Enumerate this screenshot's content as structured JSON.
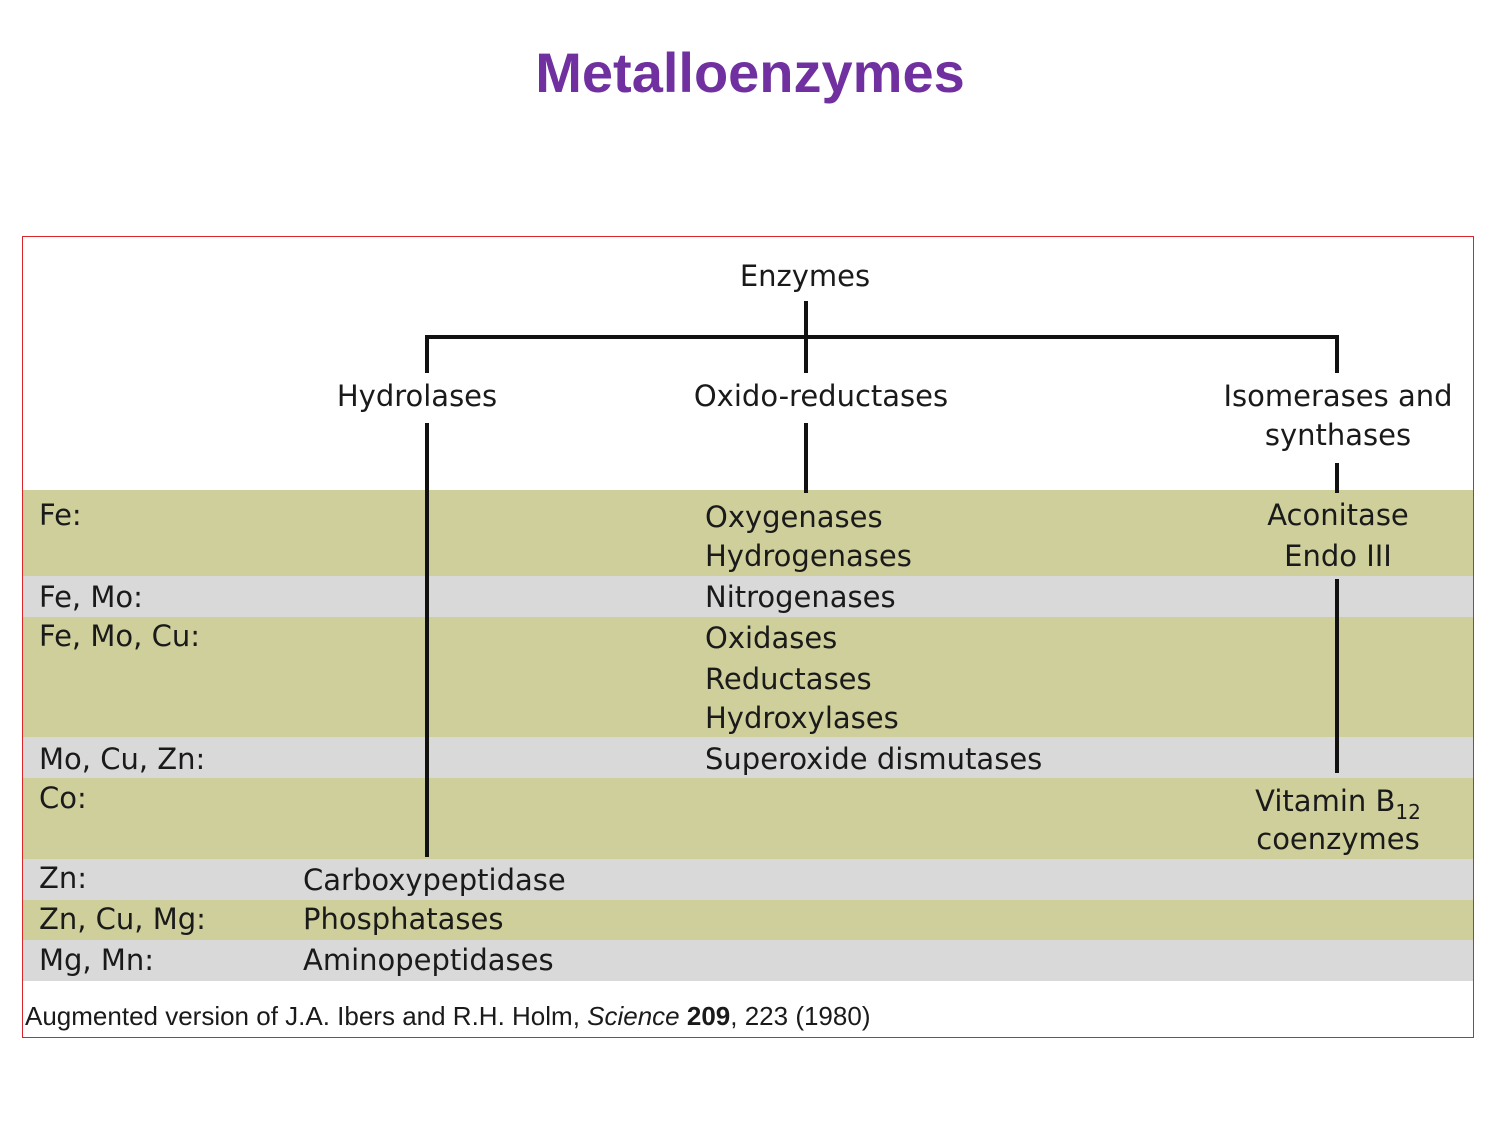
{
  "title": "Metalloenzymes",
  "colors": {
    "title": "#7030a0",
    "frame": "#d8262b",
    "olive_band": "#cfcf9c",
    "grey_band": "#d9d9d9"
  },
  "tree": {
    "root": "Enzymes",
    "branches": {
      "hydrolases": "Hydrolases",
      "oxido": "Oxido-reductases",
      "isomerases_line1": "Isomerases and",
      "isomerases_line2": "synthases"
    }
  },
  "rows": [
    {
      "metals": "Fe:",
      "oxido": [
        "Oxygenases",
        "Hydrogenases"
      ],
      "isomerases": [
        "Aconitase",
        "Endo III"
      ]
    },
    {
      "metals": "Fe, Mo:",
      "oxido": [
        "Nitrogenases"
      ]
    },
    {
      "metals": "Fe, Mo, Cu:",
      "oxido": [
        "Oxidases",
        "Reductases",
        "Hydroxylases"
      ]
    },
    {
      "metals": "Mo, Cu, Zn:",
      "oxido": [
        "Superoxide dismutases"
      ]
    },
    {
      "metals": "Co:",
      "isomerases": {
        "vitamin_prefix": "Vitamin B",
        "vitamin_sub": "12",
        "line2": "coenzymes"
      }
    },
    {
      "metals": "Zn:",
      "hydrolases": [
        "Carboxypeptidase"
      ]
    },
    {
      "metals": "Zn, Cu, Mg:",
      "hydrolases": [
        "Phosphatases"
      ]
    },
    {
      "metals": "Mg, Mn:",
      "hydrolases": [
        "Aminopeptidases"
      ]
    }
  ],
  "caption": {
    "prefix": "Augmented version of J.A. Ibers and R.H. Holm, ",
    "journal": "Science",
    "volume": "209",
    "rest": ", 223 (1980)"
  }
}
